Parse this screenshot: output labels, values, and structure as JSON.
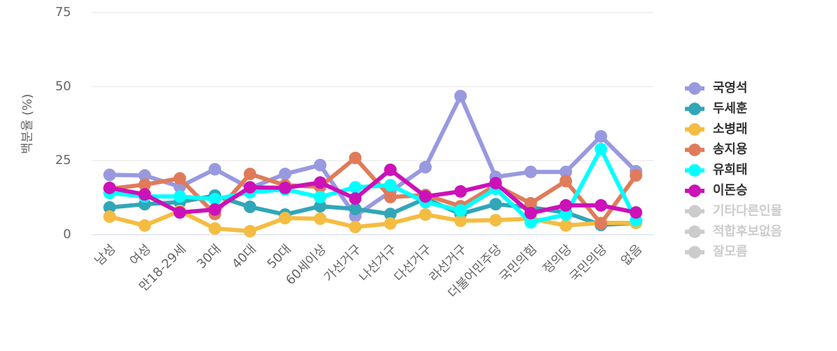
{
  "chart_data": {
    "type": "line",
    "y_label": "백분율 (%)",
    "categories": [
      "남성",
      "여성",
      "만18-29세",
      "30대",
      "40대",
      "50대",
      "60세이상",
      "가선거구",
      "나선거구",
      "다선거구",
      "라선거구",
      "더불어민주당",
      "국민의힘",
      "정의당",
      "국민의당",
      "없음"
    ],
    "ylim": [
      0,
      75
    ],
    "yticks": [
      0,
      25,
      50,
      75
    ],
    "grid": true,
    "series": [
      {
        "name": "국영석",
        "color": "#9999e0",
        "values": [
          20.2,
          20,
          16.2,
          22.1,
          15.7,
          20.5,
          23.5,
          6.3,
          14.5,
          22.8,
          46.8,
          19.5,
          21.2,
          21.2,
          33.2,
          21.4
        ]
      },
      {
        "name": "두세훈",
        "color": "#31a6b8",
        "values": [
          9.2,
          10.3,
          11,
          13.2,
          9.4,
          6.8,
          9.6,
          8.7,
          7,
          12.2,
          7,
          10.3,
          9.2,
          7.5,
          3.3,
          4
        ]
      },
      {
        "name": "소병래",
        "color": "#f5bc42",
        "values": [
          6.1,
          3.1,
          8,
          2.1,
          1.2,
          5.6,
          5.4,
          2.6,
          3.8,
          6.8,
          4.7,
          4.9,
          5.4,
          3.1,
          4,
          4
        ]
      },
      {
        "name": "송지용",
        "color": "#e07b5a",
        "values": [
          15.5,
          16.9,
          19,
          7,
          20.5,
          16.7,
          16.2,
          25.9,
          12.7,
          13.4,
          9.6,
          16.7,
          10.6,
          18.1,
          3.8,
          20
        ]
      },
      {
        "name": "유희태",
        "color": "#00ffff",
        "values": [
          14.1,
          12.9,
          12.9,
          12,
          14.3,
          15.3,
          12.7,
          16,
          16.7,
          11,
          8.2,
          15.5,
          4.2,
          6.8,
          28.9,
          4.9
        ]
      },
      {
        "name": "이돈승",
        "color": "#cc11b8",
        "values": [
          15.8,
          13.6,
          7.5,
          8.5,
          16,
          15.8,
          17.6,
          12.2,
          21.9,
          12.9,
          14.6,
          17.4,
          7.3,
          9.9,
          9.9,
          7.5
        ]
      },
      {
        "name": "기타다른인물",
        "color": "#cccccc",
        "visible": false
      },
      {
        "name": "적합후보없음",
        "color": "#cccccc",
        "visible": false
      },
      {
        "name": "잘모름",
        "color": "#cccccc",
        "visible": false
      }
    ]
  }
}
